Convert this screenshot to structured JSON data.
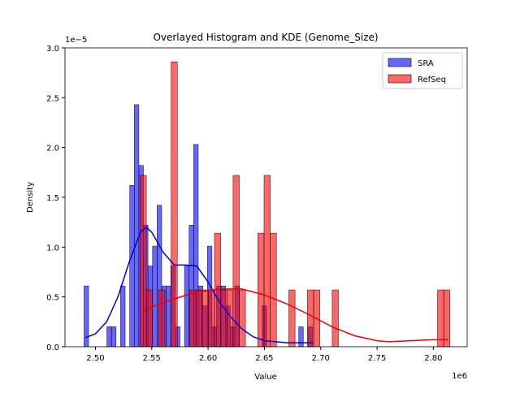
{
  "chart_data": {
    "type": "histogram",
    "title": "Overlayed Histogram and KDE (Genome_Size)",
    "x_label": "Value",
    "y_label": "Density",
    "x_offset_text": "1e6",
    "y_offset_text": "1e−5",
    "xlim": [
      2473000,
      2830000
    ],
    "ylim": [
      0,
      3e-05
    ],
    "xticks": [
      {
        "value": 2500000,
        "label": "2.50"
      },
      {
        "value": 2550000,
        "label": "2.55"
      },
      {
        "value": 2600000,
        "label": "2.60"
      },
      {
        "value": 2650000,
        "label": "2.65"
      },
      {
        "value": 2700000,
        "label": "2.70"
      },
      {
        "value": 2750000,
        "label": "2.75"
      },
      {
        "value": 2800000,
        "label": "2.80"
      }
    ],
    "yticks": [
      {
        "value": 0,
        "label": "0.0"
      },
      {
        "value": 5e-06,
        "label": "0.5"
      },
      {
        "value": 1e-05,
        "label": "1.0"
      },
      {
        "value": 1.5e-05,
        "label": "1.5"
      },
      {
        "value": 2e-05,
        "label": "2.0"
      },
      {
        "value": 2.5e-05,
        "label": "2.5"
      },
      {
        "value": 3e-05,
        "label": "3.0"
      }
    ],
    "legend": "upper right",
    "series": [
      {
        "name": "SRA",
        "color": "#0000ff",
        "line_color": "#0000dd",
        "bins": [
          2489900,
          2493955,
          2498010,
          2502065,
          2506120,
          2510175,
          2514230,
          2518285,
          2522340,
          2526395,
          2530450,
          2534505,
          2538560,
          2542615,
          2546670,
          2550725,
          2554780,
          2558835,
          2562890,
          2566945,
          2571000,
          2575055,
          2579110,
          2583165,
          2587220,
          2591275,
          2595330,
          2599385,
          2603440,
          2607495,
          2611550,
          2615605,
          2619660,
          2623715,
          2627770,
          2631825,
          2635880,
          2639935,
          2643990,
          2648045,
          2652100,
          2656155,
          2660210,
          2664265,
          2668320,
          2672375,
          2676430,
          2680485,
          2684540,
          2688595,
          2692650
        ],
        "values": [
          6.1e-06,
          0,
          0,
          0,
          0,
          2e-06,
          2e-06,
          0,
          6.1e-06,
          0,
          1.62e-05,
          2.43e-05,
          1.82e-05,
          1.22e-05,
          8.1e-06,
          1.01e-05,
          1.42e-05,
          6.1e-06,
          6.1e-06,
          8.1e-06,
          2e-06,
          0,
          8.1e-06,
          1.22e-05,
          2.03e-05,
          6.1e-06,
          4.1e-06,
          1.01e-05,
          2e-06,
          6.1e-06,
          6.1e-06,
          4.1e-06,
          2e-06,
          6.1e-06,
          0,
          0,
          0,
          0,
          0,
          4.1e-06,
          0,
          0,
          0,
          0,
          0,
          0,
          0,
          2e-06,
          0,
          2e-06
        ],
        "kde_x": [
          2491000,
          2500000,
          2510000,
          2520000,
          2530000,
          2540000,
          2545000,
          2550000,
          2560000,
          2570000,
          2580000,
          2590000,
          2600000,
          2610000,
          2620000,
          2630000,
          2640000,
          2650000,
          2660000,
          2670000,
          2680000,
          2693000
        ],
        "kde_values": [
          9e-07,
          1.3e-06,
          2.5e-06,
          5e-06,
          8.5e-06,
          1.15e-05,
          1.2e-05,
          1.15e-05,
          9.5e-06,
          8.2e-06,
          8.2e-06,
          8.1e-06,
          6.5e-06,
          4.5e-06,
          3e-06,
          1.8e-06,
          1e-06,
          6e-07,
          5e-07,
          4e-07,
          4e-07,
          4e-07
        ]
      },
      {
        "name": "RefSeq",
        "color": "#ff0000",
        "line_color": "#ee0000",
        "bins": [
          2539700,
          2545200,
          2550700,
          2556200,
          2561700,
          2567200,
          2572700,
          2578200,
          2583700,
          2589200,
          2594700,
          2600200,
          2605700,
          2611200,
          2616700,
          2622200,
          2627700,
          2633200,
          2638700,
          2644200,
          2649700,
          2655200,
          2660700,
          2666200,
          2671700,
          2677200,
          2682700,
          2688200,
          2693700,
          2699200,
          2704700,
          2710200,
          2715700,
          2721200,
          2726700,
          2732200,
          2737700,
          2743200,
          2748700,
          2754200,
          2759700,
          2765200,
          2770700,
          2776200,
          2781700,
          2787200,
          2792700,
          2798200,
          2803700,
          2809200,
          2814700
        ],
        "values": [
          1.72e-05,
          5.7e-06,
          0,
          5.7e-06,
          0,
          2.86e-05,
          0,
          0,
          5.7e-06,
          5.7e-06,
          5.7e-06,
          5.7e-06,
          1.14e-05,
          5.7e-06,
          5.7e-06,
          1.72e-05,
          5.7e-06,
          0,
          0,
          1.14e-05,
          1.72e-05,
          1.14e-05,
          0,
          0,
          5.7e-06,
          0,
          0,
          5.7e-06,
          5.7e-06,
          0,
          0,
          5.7e-06,
          0,
          0,
          0,
          0,
          0,
          0,
          0,
          0,
          0,
          0,
          0,
          0,
          0,
          0,
          0,
          0,
          5.7e-06,
          5.7e-06
        ],
        "kde_x": [
          2542000,
          2550000,
          2570000,
          2590000,
          2610000,
          2630000,
          2650000,
          2670000,
          2690000,
          2710000,
          2730000,
          2750000,
          2760000,
          2780000,
          2800000,
          2813000
        ],
        "kde_values": [
          3.5e-06,
          4e-06,
          4.8e-06,
          5.5e-06,
          5.8e-06,
          5.8e-06,
          5.2e-06,
          4.3e-06,
          3.2e-06,
          2e-06,
          1.1e-06,
          6e-07,
          5e-07,
          6e-07,
          7e-07,
          7e-07
        ]
      }
    ]
  }
}
